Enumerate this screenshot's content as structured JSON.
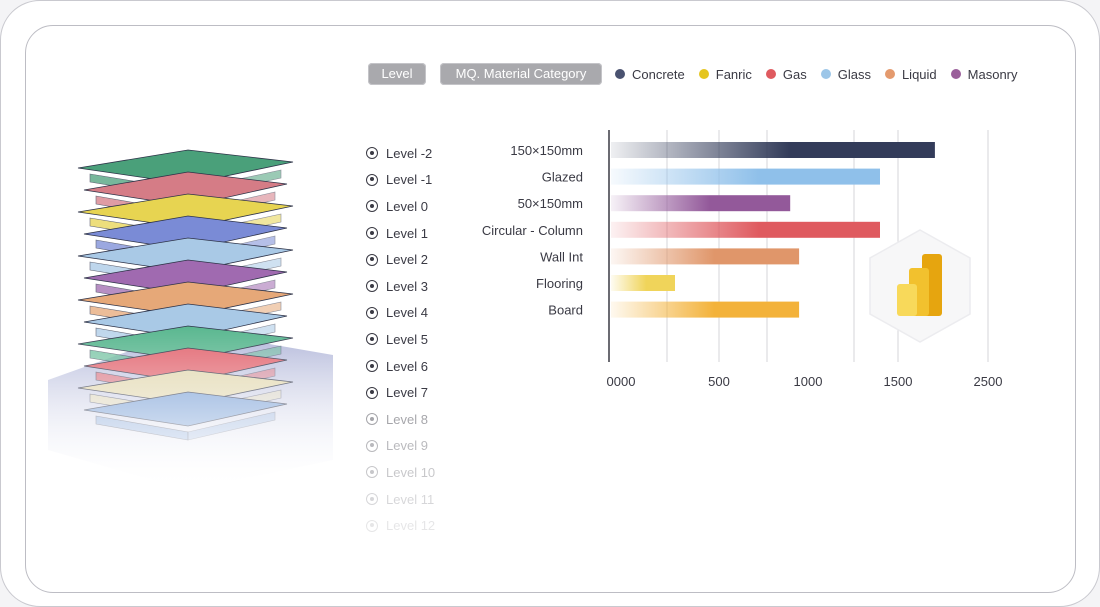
{
  "filters": [
    {
      "label": "Level"
    },
    {
      "label": "MQ. Material Category"
    }
  ],
  "legend": [
    {
      "name": "Concrete",
      "color": "#4a5270"
    },
    {
      "name": "Fanric",
      "color": "#e5c51f"
    },
    {
      "name": "Gas",
      "color": "#df5a5f"
    },
    {
      "name": "Glass",
      "color": "#9cc6e8"
    },
    {
      "name": "Liquid",
      "color": "#e49a6e"
    },
    {
      "name": "Masonry",
      "color": "#9a5e9a"
    }
  ],
  "levels": [
    {
      "label": "Level -2",
      "opacity": 1
    },
    {
      "label": "Level -1",
      "opacity": 1
    },
    {
      "label": "Level 0",
      "opacity": 1
    },
    {
      "label": "Level 1",
      "opacity": 1
    },
    {
      "label": "Level 2",
      "opacity": 1
    },
    {
      "label": "Level 3",
      "opacity": 1
    },
    {
      "label": "Level 4",
      "opacity": 1
    },
    {
      "label": "Level 5",
      "opacity": 1
    },
    {
      "label": "Level 6",
      "opacity": 1
    },
    {
      "label": "Level 7",
      "opacity": 1
    },
    {
      "label": "Level 8",
      "opacity": 0.45
    },
    {
      "label": "Level 9",
      "opacity": 0.35
    },
    {
      "label": "Level 10",
      "opacity": 0.28
    },
    {
      "label": "Level 11",
      "opacity": 0.2
    },
    {
      "label": "Level 12",
      "opacity": 0.12
    }
  ],
  "chart_data": {
    "type": "bar",
    "orientation": "horizontal",
    "categories": [
      "150×150mm",
      "Glazed",
      "50×150mm",
      "Circular - Column",
      "Wall Int",
      "Flooring",
      "Board"
    ],
    "values": [
      1910,
      1400,
      900,
      1400,
      950,
      300,
      950
    ],
    "bar_colors": [
      "#333c5a",
      "#8fc0ea",
      "#93599a",
      "#df5a5f",
      "#e0966a",
      "#f0d45a",
      "#f3b23a"
    ],
    "xticks": [
      "0000",
      "500",
      "1000",
      "1500",
      "2500"
    ],
    "xlim": [
      0,
      2500
    ],
    "grid": true,
    "legend_position": "top"
  },
  "icons": {
    "level_radio": "radio-icon",
    "powerbi": "powerbi-icon",
    "building": "building-model"
  }
}
